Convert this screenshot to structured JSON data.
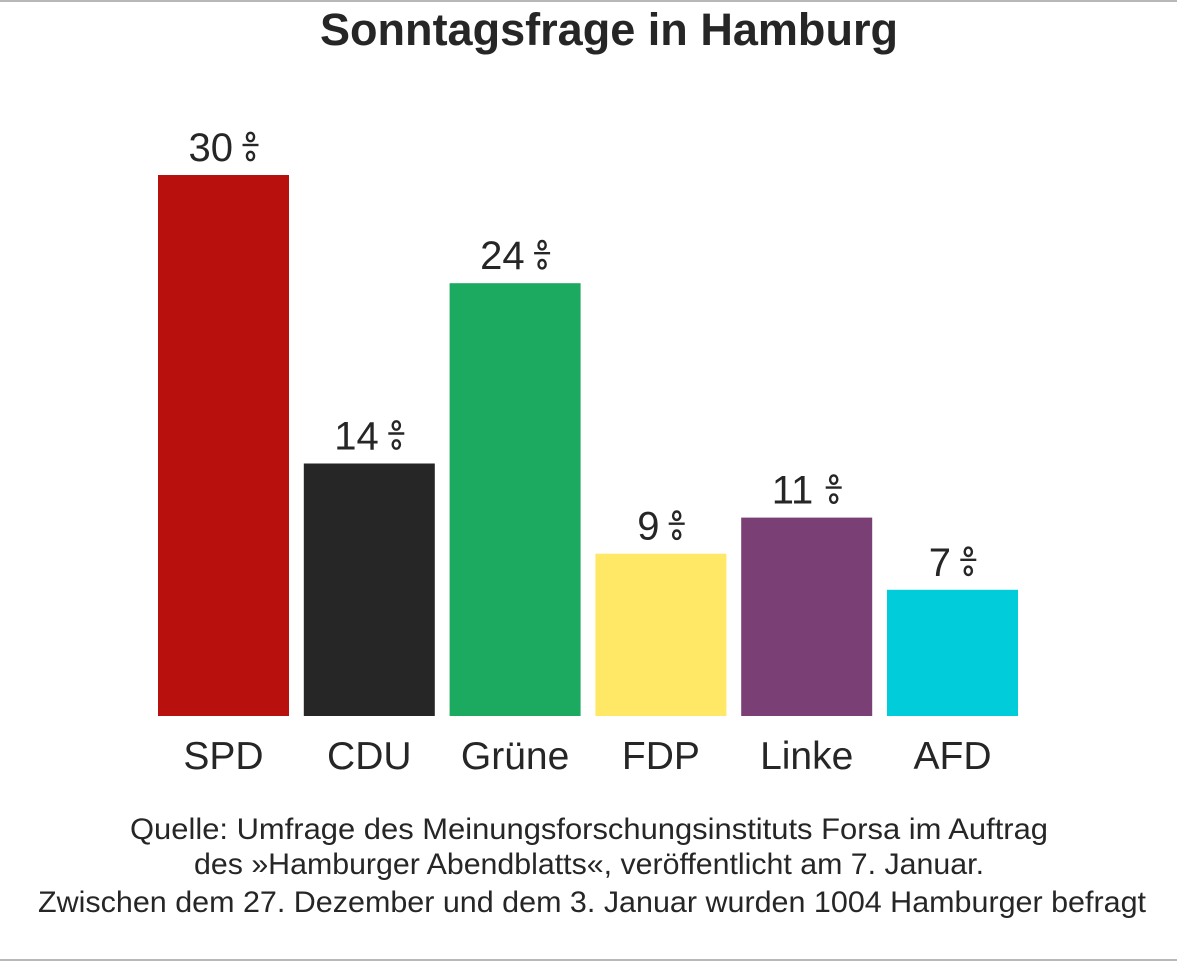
{
  "chart_data": {
    "type": "bar",
    "title": "Sonntagsfrage in Hamburg",
    "categories": [
      "SPD",
      "CDU",
      "Grüne",
      "FDP",
      "Linke",
      "AFD"
    ],
    "values": [
      30,
      14,
      24,
      9,
      11,
      7
    ],
    "value_labels": [
      "30 %",
      "14 %",
      "24 %",
      "9 %",
      "11 %",
      "7 %"
    ],
    "unit": "%",
    "colors": [
      "#B8100D",
      "#262626",
      "#1BAA5F",
      "#FFE865",
      "#7A4075",
      "#00CCDA"
    ],
    "xlabel": "",
    "ylabel": "",
    "ylim": [
      0,
      30
    ],
    "grid": false,
    "legend": "none"
  },
  "footnote": {
    "lines": [
      "Quelle: Umfrage des Meinungsforschungsinstituts Forsa im Auftrag",
      "des »Hamburger Abendblatts«, veröffentlicht am 7. Januar.",
      "Zwischen dem 27. Dezember und dem 3. Januar wurden 1004 Hamburger befragt"
    ]
  },
  "colors": {
    "text": "#262626",
    "border": "#b8b8b8",
    "background": "#ffffff"
  }
}
